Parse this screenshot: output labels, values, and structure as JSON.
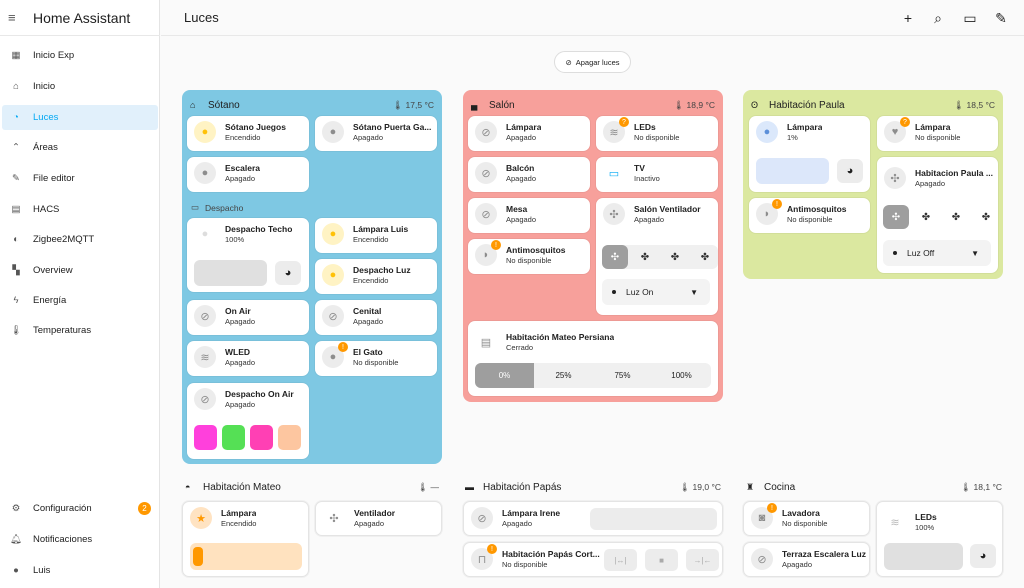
{
  "app_title": "Home Assistant",
  "page_title": "Luces",
  "sidebar": {
    "items": [
      {
        "label": "Inicio Exp",
        "icon": "home-building-icon"
      },
      {
        "label": "Inicio",
        "icon": "home-icon"
      },
      {
        "label": "Luces",
        "icon": "lightbulb-icon"
      },
      {
        "label": "Áreas",
        "icon": "areas-icon"
      },
      {
        "label": "File editor",
        "icon": "wrench-icon"
      },
      {
        "label": "HACS",
        "icon": "hacs-icon"
      },
      {
        "label": "Zigbee2MQTT",
        "icon": "zigbee-icon"
      },
      {
        "label": "Overview",
        "icon": "dashboard-icon"
      },
      {
        "label": "Energía",
        "icon": "lightning-icon"
      },
      {
        "label": "Temperaturas",
        "icon": "thermometer-icon"
      }
    ],
    "active": "Luces",
    "config_label": "Configuración",
    "config_badge": "2",
    "notifications_label": "Notificaciones",
    "user_label": "Luis"
  },
  "apagar_label": "Apagar luces",
  "sotano": {
    "title": "Sótano",
    "temp": "17,5 °C",
    "tiles": [
      {
        "name": "Sótano Juegos",
        "state": "Encendido"
      },
      {
        "name": "Sótano Puerta Ga...",
        "state": "Apagado"
      },
      {
        "name": "Escalera",
        "state": "Apagado"
      }
    ],
    "despacho_label": "Despacho",
    "despacho_techo": {
      "name": "Despacho Techo",
      "state": "100%"
    },
    "lampara_luis": {
      "name": "Lámpara Luis",
      "state": "Encendido"
    },
    "despacho_luz": {
      "name": "Despacho Luz",
      "state": "Encendido"
    },
    "on_air": {
      "name": "On Air",
      "state": "Apagado"
    },
    "cenital": {
      "name": "Cenital",
      "state": "Apagado"
    },
    "wled": {
      "name": "WLED",
      "state": "Apagado"
    },
    "el_gato": {
      "name": "El Gato",
      "state": "No disponible"
    },
    "despacho_on_air": {
      "name": "Despacho On Air",
      "state": "Apagado"
    },
    "swatches": [
      "#ff40dc",
      "#55e055",
      "#ff40b4",
      "#fdc6a0"
    ]
  },
  "salon": {
    "title": "Salón",
    "temp": "18,9 °C",
    "lampara": {
      "name": "Lámpara",
      "state": "Apagado"
    },
    "leds": {
      "name": "LEDs",
      "state": "No disponible"
    },
    "balcon": {
      "name": "Balcón",
      "state": "Apagado"
    },
    "tv": {
      "name": "TV",
      "state": "Inactivo"
    },
    "mesa": {
      "name": "Mesa",
      "state": "Apagado"
    },
    "ventilador": {
      "name": "Salón Ventilador",
      "state": "Apagado",
      "select": "Luz On"
    },
    "antimosquitos": {
      "name": "Antimosquitos",
      "state": "No disponible"
    },
    "persiana": {
      "name": "Habitación Mateo Persiana",
      "state": "Cerrado",
      "positions": [
        "0%",
        "25%",
        "75%",
        "100%"
      ]
    }
  },
  "paula": {
    "title": "Habitación Paula",
    "temp": "18,5 °C",
    "lampara1": {
      "name": "Lámpara",
      "state": "1%"
    },
    "lampara2": {
      "name": "Lámpara",
      "state": "No disponible"
    },
    "ventilador": {
      "name": "Habitacion Paula ...",
      "state": "Apagado",
      "select": "Luz Off"
    },
    "antimosquitos": {
      "name": "Antimosquitos",
      "state": "No disponible"
    }
  },
  "mateo": {
    "title": "Habitación Mateo",
    "temp": "—",
    "lampara": {
      "name": "Lámpara",
      "state": "Encendido"
    },
    "ventilador": {
      "name": "Ventilador",
      "state": "Apagado"
    }
  },
  "papas": {
    "title": "Habitación Papás",
    "temp": "19,0 °C",
    "lampara_irene": {
      "name": "Lámpara Irene",
      "state": "Apagado"
    },
    "cortina": {
      "name": "Habitación Papás Cort...",
      "state": "No disponible"
    }
  },
  "cocina": {
    "title": "Cocina",
    "temp": "18,1 °C",
    "lavadora": {
      "name": "Lavadora",
      "state": "No disponible"
    },
    "leds": {
      "name": "LEDs",
      "state": "100%"
    },
    "terraza": {
      "name": "Terraza Escalera Luz",
      "state": "Apagado"
    }
  }
}
